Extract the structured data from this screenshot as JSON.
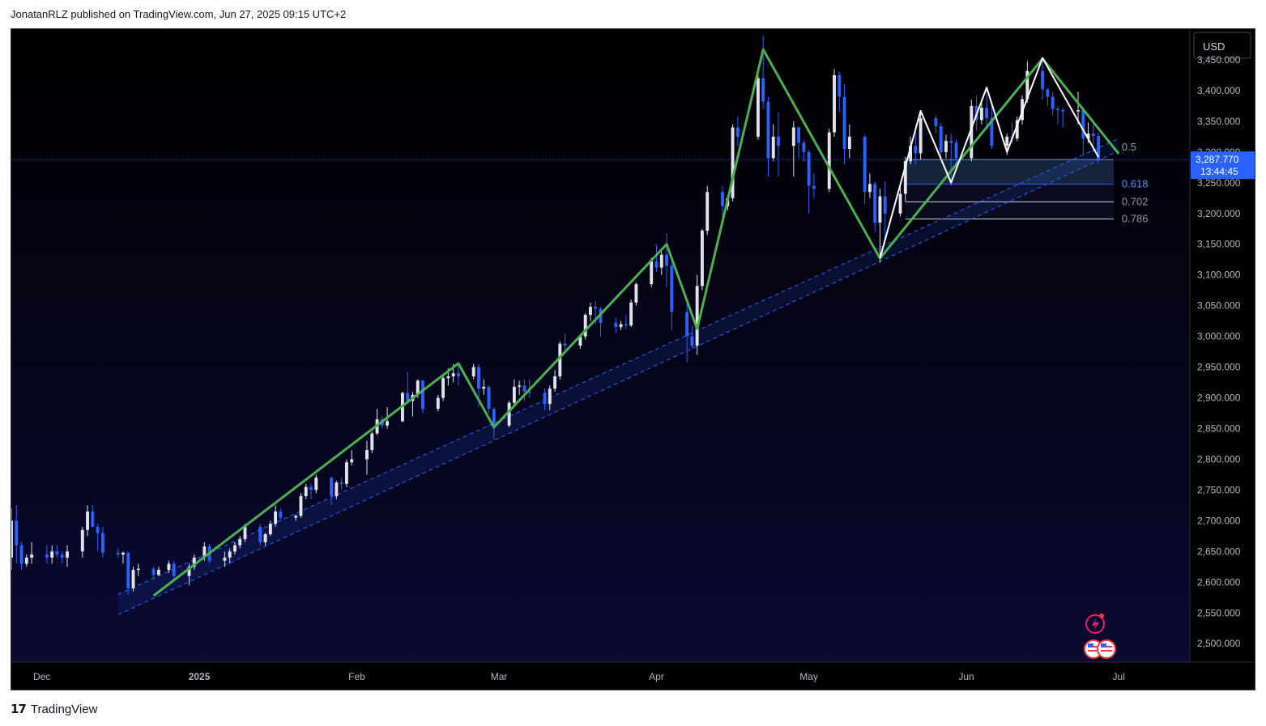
{
  "header": {
    "published": "JonatanRLZ published on TradingView.com, Jun 27, 2025 09:15 UTC+2"
  },
  "footer": {
    "logo": "17",
    "brand": "TradingView"
  },
  "colors": {
    "background": "#03031a",
    "bull": "#e0e3eb",
    "bear": "#2962ff",
    "zigzag": "#4caf50",
    "pattern": "#ffffff",
    "channel": "#2962ff",
    "price_line": "#2962ff"
  },
  "chart_data": {
    "type": "candlestick",
    "currency": "USD",
    "ylim": [
      2470,
      3500
    ],
    "y_ticks": [
      2500,
      2550,
      2600,
      2650,
      2700,
      2750,
      2800,
      2850,
      2900,
      2950,
      3000,
      3050,
      3100,
      3150,
      3200,
      3250,
      3300,
      3350,
      3400,
      3450
    ],
    "y_tick_labels": [
      "2,500.000",
      "2,550.000",
      "2,600.000",
      "2,650.000",
      "2,700.000",
      "2,750.000",
      "2,800.000",
      "2,850.000",
      "2,900.000",
      "2,950.000",
      "3,000.000",
      "3,050.000",
      "3,100.000",
      "3,150.000",
      "3,200.000",
      "3,250.000",
      "3,300.000",
      "3,350.000",
      "3,400.000",
      "3,450.000"
    ],
    "x_range": [
      "2024-11-25",
      "2025-07-15"
    ],
    "x_ticks": [
      {
        "date": "2024-12-01",
        "label": "Dec",
        "bold": false
      },
      {
        "date": "2025-01-01",
        "label": "2025",
        "bold": true
      },
      {
        "date": "2025-02-01",
        "label": "Feb",
        "bold": false
      },
      {
        "date": "2025-03-01",
        "label": "Mar",
        "bold": false
      },
      {
        "date": "2025-04-01",
        "label": "Apr",
        "bold": false
      },
      {
        "date": "2025-05-01",
        "label": "May",
        "bold": false
      },
      {
        "date": "2025-06-01",
        "label": "Jun",
        "bold": false
      },
      {
        "date": "2025-07-01",
        "label": "Jul",
        "bold": false
      }
    ],
    "last_price": {
      "value": 3287.77,
      "label": "3,287.770",
      "countdown": "13:44:45"
    },
    "fib_levels": [
      {
        "ratio": "0.5",
        "value": 3287.7
      },
      {
        "ratio": "0.618",
        "value": 3248
      },
      {
        "ratio": "0.702",
        "value": 3219
      },
      {
        "ratio": "0.786",
        "value": 3191
      }
    ],
    "fib_zone": {
      "start": "2025-05-20",
      "end": "2025-06-30"
    },
    "channel": {
      "lower": [
        [
          "2024-12-16",
          2547
        ],
        [
          "2025-07-01",
          3302
        ]
      ],
      "upper": [
        [
          "2024-12-16",
          2580
        ],
        [
          "2025-07-01",
          3322
        ]
      ]
    },
    "zigzag": [
      [
        "2024-12-23",
        2578
      ],
      [
        "2025-02-21",
        2956
      ],
      [
        "2025-02-28",
        2852
      ],
      [
        "2025-04-03",
        3150
      ],
      [
        "2025-04-09",
        3012
      ],
      [
        "2025-04-22",
        3467
      ],
      [
        "2025-05-15",
        3127
      ],
      [
        "2025-06-16",
        3452
      ],
      [
        "2025-07-01",
        3297
      ]
    ],
    "pattern": [
      [
        "2025-05-15",
        3127
      ],
      [
        "2025-05-23",
        3367
      ],
      [
        "2025-05-29",
        3250
      ],
      [
        "2025-06-05",
        3405
      ],
      [
        "2025-06-09",
        3300
      ],
      [
        "2025-06-16",
        3453
      ],
      [
        "2025-06-27",
        3292
      ]
    ],
    "candles": [
      [
        "2024-11-25",
        2640,
        2720,
        2620,
        2700
      ],
      [
        "2024-11-26",
        2700,
        2725,
        2630,
        2660
      ],
      [
        "2024-11-27",
        2660,
        2665,
        2620,
        2630
      ],
      [
        "2024-11-28",
        2630,
        2645,
        2625,
        2640
      ],
      [
        "2024-11-29",
        2640,
        2665,
        2630,
        2645
      ],
      [
        "2024-12-02",
        2645,
        2660,
        2630,
        2640
      ],
      [
        "2024-12-03",
        2640,
        2660,
        2630,
        2650
      ],
      [
        "2024-12-04",
        2650,
        2660,
        2640,
        2645
      ],
      [
        "2024-12-05",
        2645,
        2650,
        2630,
        2640
      ],
      [
        "2024-12-06",
        2640,
        2660,
        2625,
        2650
      ],
      [
        "2024-12-09",
        2650,
        2690,
        2640,
        2685
      ],
      [
        "2024-12-10",
        2685,
        2725,
        2675,
        2715
      ],
      [
        "2024-12-11",
        2715,
        2726,
        2700,
        2690
      ],
      [
        "2024-12-12",
        2690,
        2695,
        2650,
        2680
      ],
      [
        "2024-12-13",
        2680,
        2690,
        2640,
        2648
      ],
      [
        "2024-12-16",
        2648,
        2655,
        2640,
        2645
      ],
      [
        "2024-12-17",
        2645,
        2650,
        2630,
        2648
      ],
      [
        "2024-12-18",
        2648,
        2650,
        2580,
        2590
      ],
      [
        "2024-12-19",
        2590,
        2625,
        2585,
        2620
      ],
      [
        "2024-12-20",
        2620,
        2630,
        2610,
        2622
      ],
      [
        "2024-12-23",
        2622,
        2625,
        2605,
        2612
      ],
      [
        "2024-12-24",
        2612,
        2625,
        2610,
        2620
      ],
      [
        "2024-12-26",
        2620,
        2635,
        2615,
        2630
      ],
      [
        "2024-12-27",
        2630,
        2635,
        2605,
        2610
      ],
      [
        "2024-12-30",
        2610,
        2630,
        2595,
        2625
      ],
      [
        "2024-12-31",
        2625,
        2645,
        2620,
        2640
      ],
      [
        "2025-01-02",
        2640,
        2665,
        2635,
        2658
      ],
      [
        "2025-01-03",
        2658,
        2662,
        2630,
        2635
      ],
      [
        "2025-01-06",
        2635,
        2650,
        2625,
        2640
      ],
      [
        "2025-01-07",
        2640,
        2655,
        2630,
        2650
      ],
      [
        "2025-01-08",
        2650,
        2665,
        2645,
        2660
      ],
      [
        "2025-01-09",
        2660,
        2675,
        2655,
        2670
      ],
      [
        "2025-01-10",
        2670,
        2695,
        2665,
        2690
      ],
      [
        "2025-01-13",
        2690,
        2695,
        2660,
        2665
      ],
      [
        "2025-01-14",
        2665,
        2680,
        2660,
        2678
      ],
      [
        "2025-01-15",
        2678,
        2700,
        2675,
        2695
      ],
      [
        "2025-01-16",
        2695,
        2725,
        2690,
        2715
      ],
      [
        "2025-01-17",
        2715,
        2720,
        2700,
        2705
      ],
      [
        "2025-01-20",
        2705,
        2710,
        2700,
        2708
      ],
      [
        "2025-01-21",
        2708,
        2745,
        2705,
        2740
      ],
      [
        "2025-01-22",
        2740,
        2760,
        2735,
        2755
      ],
      [
        "2025-01-23",
        2755,
        2760,
        2735,
        2750
      ],
      [
        "2025-01-24",
        2750,
        2775,
        2745,
        2770
      ],
      [
        "2025-01-27",
        2770,
        2772,
        2725,
        2740
      ],
      [
        "2025-01-28",
        2740,
        2765,
        2735,
        2762
      ],
      [
        "2025-01-29",
        2762,
        2770,
        2750,
        2760
      ],
      [
        "2025-01-30",
        2760,
        2800,
        2755,
        2795
      ],
      [
        "2025-01-31",
        2795,
        2815,
        2790,
        2800
      ],
      [
        "2025-02-03",
        2800,
        2830,
        2775,
        2815
      ],
      [
        "2025-02-04",
        2815,
        2845,
        2810,
        2842
      ],
      [
        "2025-02-05",
        2842,
        2882,
        2840,
        2865
      ],
      [
        "2025-02-06",
        2865,
        2870,
        2850,
        2855
      ],
      [
        "2025-02-07",
        2855,
        2885,
        2850,
        2862
      ],
      [
        "2025-02-10",
        2862,
        2910,
        2860,
        2908
      ],
      [
        "2025-02-11",
        2908,
        2942,
        2890,
        2895
      ],
      [
        "2025-02-12",
        2895,
        2910,
        2870,
        2905
      ],
      [
        "2025-02-13",
        2905,
        2930,
        2900,
        2928
      ],
      [
        "2025-02-14",
        2928,
        2930,
        2875,
        2882
      ],
      [
        "2025-02-17",
        2882,
        2905,
        2878,
        2900
      ],
      [
        "2025-02-18",
        2900,
        2935,
        2895,
        2932
      ],
      [
        "2025-02-19",
        2932,
        2948,
        2920,
        2935
      ],
      [
        "2025-02-20",
        2935,
        2955,
        2925,
        2940
      ],
      [
        "2025-02-21",
        2940,
        2952,
        2920,
        2935
      ],
      [
        "2025-02-24",
        2935,
        2955,
        2930,
        2950
      ],
      [
        "2025-02-25",
        2950,
        2955,
        2885,
        2915
      ],
      [
        "2025-02-26",
        2915,
        2930,
        2905,
        2918
      ],
      [
        "2025-02-27",
        2918,
        2920,
        2875,
        2882
      ],
      [
        "2025-02-28",
        2882,
        2885,
        2832,
        2855
      ],
      [
        "2025-03-03",
        2855,
        2895,
        2852,
        2892
      ],
      [
        "2025-03-04",
        2892,
        2930,
        2885,
        2918
      ],
      [
        "2025-03-05",
        2918,
        2928,
        2905,
        2920
      ],
      [
        "2025-03-06",
        2920,
        2930,
        2895,
        2910
      ],
      [
        "2025-03-07",
        2910,
        2930,
        2900,
        2908
      ],
      [
        "2025-03-10",
        2908,
        2915,
        2880,
        2890
      ],
      [
        "2025-03-11",
        2890,
        2920,
        2880,
        2915
      ],
      [
        "2025-03-12",
        2915,
        2945,
        2910,
        2935
      ],
      [
        "2025-03-13",
        2935,
        2992,
        2930,
        2988
      ],
      [
        "2025-03-14",
        2988,
        3005,
        2975,
        2985
      ],
      [
        "2025-03-17",
        2985,
        3002,
        2980,
        3000
      ],
      [
        "2025-03-18",
        3000,
        3038,
        2995,
        3035
      ],
      [
        "2025-03-19",
        3035,
        3055,
        3025,
        3048
      ],
      [
        "2025-03-20",
        3048,
        3058,
        3020,
        3045
      ],
      [
        "2025-03-21",
        3045,
        3048,
        3000,
        3022
      ],
      [
        "2025-03-24",
        3022,
        3030,
        3005,
        3015
      ],
      [
        "2025-03-25",
        3015,
        3025,
        3010,
        3020
      ],
      [
        "2025-03-26",
        3020,
        3035,
        3012,
        3018
      ],
      [
        "2025-03-27",
        3018,
        3060,
        3015,
        3055
      ],
      [
        "2025-03-28",
        3055,
        3088,
        3050,
        3085
      ],
      [
        "2025-03-31",
        3085,
        3128,
        3080,
        3122
      ],
      [
        "2025-04-01",
        3122,
        3150,
        3105,
        3112
      ],
      [
        "2025-04-02",
        3112,
        3138,
        3100,
        3133
      ],
      [
        "2025-04-03",
        3133,
        3168,
        3080,
        3115
      ],
      [
        "2025-04-04",
        3115,
        3120,
        3010,
        3040
      ],
      [
        "2025-04-07",
        3040,
        3055,
        2958,
        3000
      ],
      [
        "2025-04-08",
        3000,
        3018,
        2980,
        2985
      ],
      [
        "2025-04-09",
        2985,
        3100,
        2970,
        3082
      ],
      [
        "2025-04-10",
        3082,
        3175,
        3075,
        3172
      ],
      [
        "2025-04-11",
        3172,
        3245,
        3165,
        3235
      ],
      [
        "2025-04-14",
        3235,
        3245,
        3195,
        3212
      ],
      [
        "2025-04-15",
        3212,
        3230,
        3205,
        3225
      ],
      [
        "2025-04-16",
        3225,
        3345,
        3220,
        3340
      ],
      [
        "2025-04-17",
        3340,
        3358,
        3310,
        3325
      ],
      [
        "2025-04-21",
        3325,
        3428,
        3320,
        3420
      ],
      [
        "2025-04-22",
        3420,
        3490,
        3370,
        3382
      ],
      [
        "2025-04-23",
        3382,
        3390,
        3260,
        3290
      ],
      [
        "2025-04-24",
        3290,
        3345,
        3285,
        3325
      ],
      [
        "2025-04-25",
        3325,
        3365,
        3260,
        3310
      ],
      [
        "2025-04-28",
        3310,
        3350,
        3260,
        3340
      ],
      [
        "2025-04-29",
        3340,
        3342,
        3290,
        3315
      ],
      [
        "2025-04-30",
        3315,
        3320,
        3285,
        3300
      ],
      [
        "2025-05-01",
        3300,
        3303,
        3200,
        3245
      ],
      [
        "2025-05-02",
        3245,
        3265,
        3225,
        3240
      ],
      [
        "2025-05-05",
        3240,
        3338,
        3235,
        3332
      ],
      [
        "2025-05-06",
        3332,
        3435,
        3325,
        3425
      ],
      [
        "2025-05-07",
        3425,
        3430,
        3365,
        3390
      ],
      [
        "2025-05-08",
        3390,
        3410,
        3280,
        3305
      ],
      [
        "2025-05-09",
        3305,
        3345,
        3290,
        3325
      ],
      [
        "2025-05-12",
        3325,
        3328,
        3215,
        3235
      ],
      [
        "2025-05-13",
        3235,
        3265,
        3225,
        3248
      ],
      [
        "2025-05-14",
        3248,
        3252,
        3170,
        3185
      ],
      [
        "2025-05-15",
        3185,
        3240,
        3120,
        3228
      ],
      [
        "2025-05-16",
        3228,
        3252,
        3150,
        3200
      ],
      [
        "2025-05-19",
        3200,
        3250,
        3195,
        3232
      ],
      [
        "2025-05-20",
        3232,
        3292,
        3220,
        3285
      ],
      [
        "2025-05-21",
        3285,
        3325,
        3280,
        3310
      ],
      [
        "2025-05-22",
        3310,
        3345,
        3280,
        3298
      ],
      [
        "2025-05-23",
        3298,
        3368,
        3288,
        3355
      ],
      [
        "2025-05-26",
        3355,
        3360,
        3330,
        3342
      ],
      [
        "2025-05-27",
        3342,
        3348,
        3290,
        3300
      ],
      [
        "2025-05-28",
        3300,
        3328,
        3290,
        3318
      ],
      [
        "2025-05-29",
        3318,
        3330,
        3245,
        3315
      ],
      [
        "2025-05-30",
        3315,
        3320,
        3280,
        3290
      ],
      [
        "2025-06-02",
        3290,
        3385,
        3285,
        3375
      ],
      [
        "2025-06-03",
        3375,
        3392,
        3335,
        3352
      ],
      [
        "2025-06-04",
        3352,
        3385,
        3345,
        3372
      ],
      [
        "2025-06-05",
        3372,
        3404,
        3338,
        3355
      ],
      [
        "2025-06-06",
        3355,
        3375,
        3305,
        3310
      ],
      [
        "2025-06-09",
        3310,
        3330,
        3295,
        3325
      ],
      [
        "2025-06-10",
        3325,
        3348,
        3315,
        3322
      ],
      [
        "2025-06-11",
        3322,
        3358,
        3318,
        3352
      ],
      [
        "2025-06-12",
        3352,
        3392,
        3345,
        3386
      ],
      [
        "2025-06-13",
        3386,
        3448,
        3380,
        3432
      ],
      [
        "2025-06-16",
        3432,
        3452,
        3385,
        3402
      ],
      [
        "2025-06-17",
        3402,
        3405,
        3375,
        3390
      ],
      [
        "2025-06-18",
        3390,
        3398,
        3360,
        3370
      ],
      [
        "2025-06-19",
        3370,
        3375,
        3345,
        3368
      ],
      [
        "2025-06-20",
        3368,
        3372,
        3340,
        3366
      ],
      [
        "2025-06-23",
        3366,
        3398,
        3345,
        3368
      ],
      [
        "2025-06-24",
        3368,
        3370,
        3295,
        3322
      ],
      [
        "2025-06-25",
        3322,
        3348,
        3315,
        3330
      ],
      [
        "2025-06-26",
        3330,
        3348,
        3300,
        3326
      ],
      [
        "2025-06-27",
        3326,
        3332,
        3282,
        3287.77
      ]
    ]
  },
  "icons": {
    "alert": "lightning-alert-icon",
    "flags": "us-flag-icon"
  }
}
